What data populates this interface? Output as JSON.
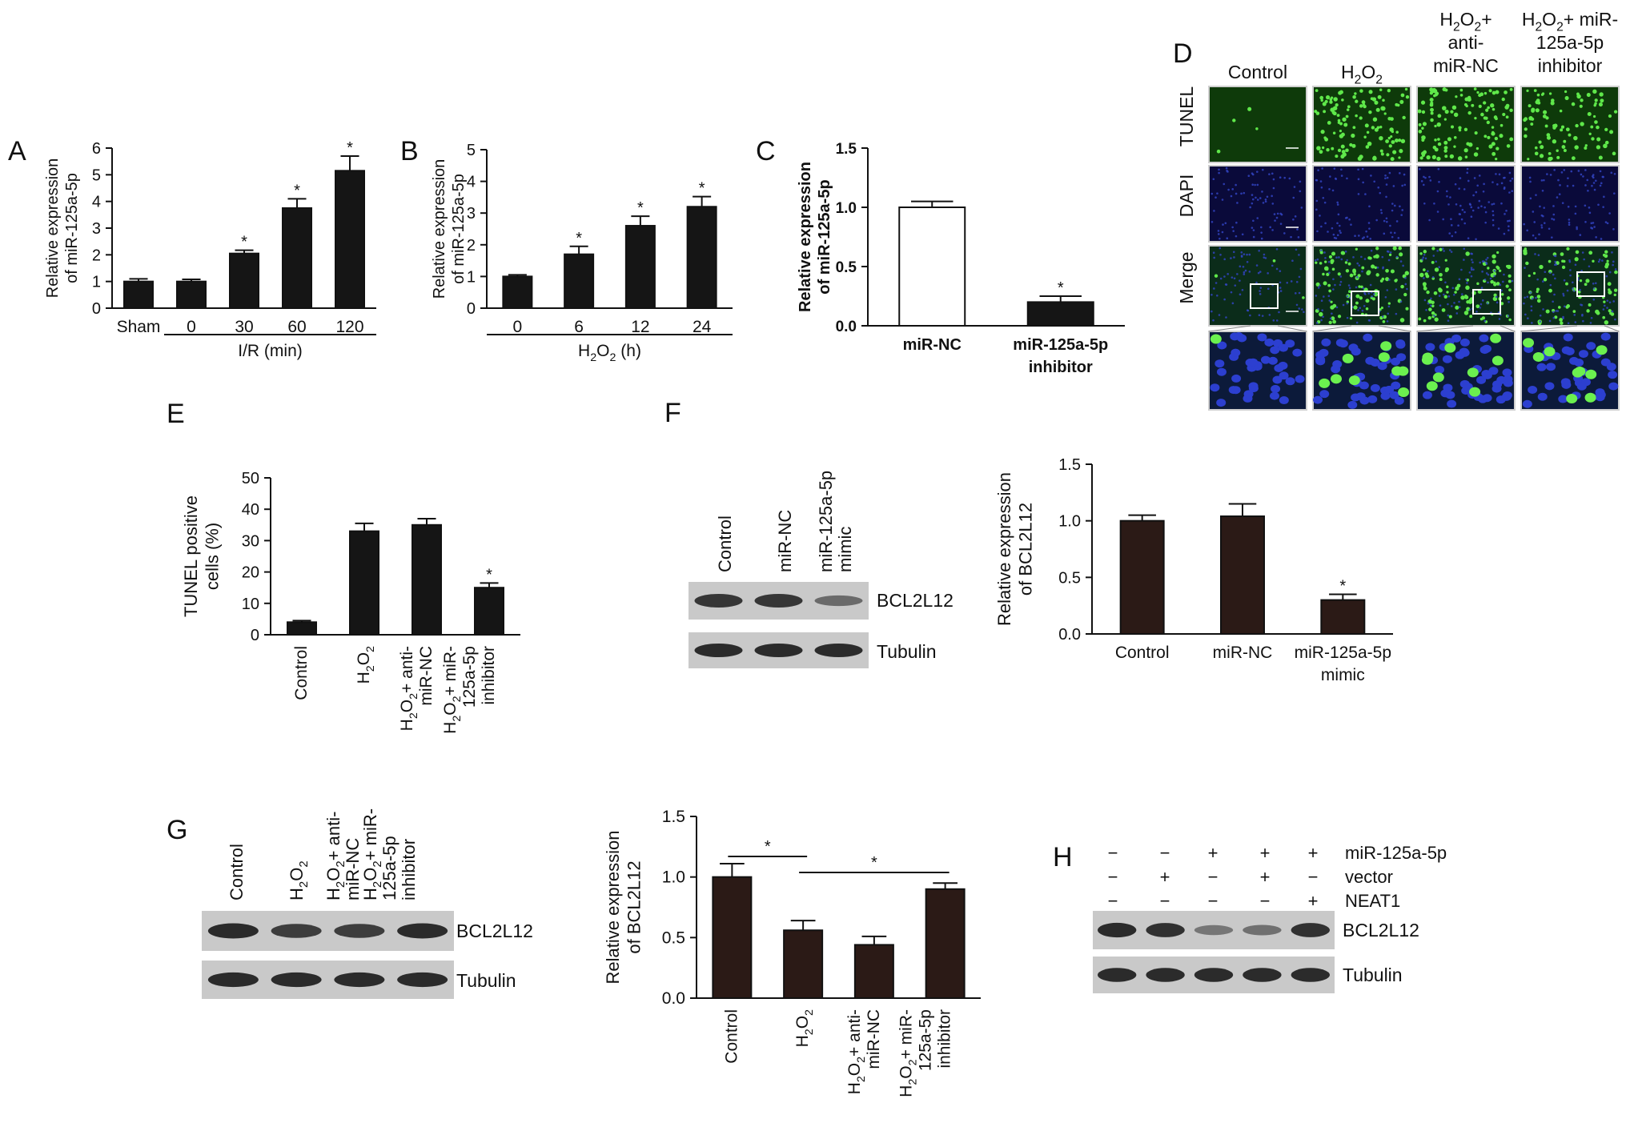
{
  "panel_letters": [
    "A",
    "B",
    "C",
    "D",
    "E",
    "F",
    "G",
    "H"
  ],
  "panel_d": {
    "columns": [
      "Control",
      "H2O2",
      "H2O2+ anti- miR-NC",
      "H2O2+ miR- 125a-5p inhibitor"
    ],
    "rows": [
      "TUNEL",
      "DAPI",
      "Merge"
    ],
    "scale_bar": "50 µm"
  },
  "blots": {
    "F": {
      "lanes": [
        "Control",
        "miR-NC",
        "miR-125a-5p mimic"
      ],
      "bands": [
        "BCL2L12",
        "Tubulin"
      ]
    },
    "G": {
      "lanes": [
        "Control",
        "H2O2",
        "H2O2+ anti- miR-NC",
        "H2O2+ miR- 125a-5p inhibitor"
      ],
      "bands": [
        "BCL2L12",
        "Tubulin"
      ]
    },
    "H": {
      "conditions": [
        {
          "name": "miR-125a-5p",
          "signs": [
            "−",
            "−",
            "+",
            "+",
            "+"
          ]
        },
        {
          "name": "vector",
          "signs": [
            "−",
            "+",
            "−",
            "+",
            "−"
          ]
        },
        {
          "name": "NEAT1",
          "signs": [
            "−",
            "−",
            "−",
            "−",
            "+"
          ]
        }
      ],
      "bands": [
        "BCL2L12",
        "Tubulin"
      ]
    }
  },
  "chart_data": [
    {
      "panel": "A",
      "type": "bar",
      "categories": [
        "Sham",
        "0",
        "30",
        "60",
        "120"
      ],
      "values": [
        1.0,
        1.0,
        2.05,
        3.75,
        5.15
      ],
      "errors": [
        0.1,
        0.08,
        0.12,
        0.35,
        0.55
      ],
      "significance": [
        "",
        "",
        "*",
        "*",
        "*"
      ],
      "xlabel": "I/R (min)",
      "ylabel": "Relative expression of miR-125a-5p",
      "ylim": [
        0,
        6
      ],
      "yticks": [
        0,
        1,
        2,
        3,
        4,
        5,
        6
      ],
      "bar_color": "#151515",
      "grid": false
    },
    {
      "panel": "B",
      "type": "bar",
      "categories": [
        "0",
        "6",
        "12",
        "24"
      ],
      "values": [
        1.0,
        1.7,
        2.6,
        3.2
      ],
      "errors": [
        0.05,
        0.25,
        0.3,
        0.32
      ],
      "significance": [
        "",
        "*",
        "*",
        "*"
      ],
      "xlabel": "H2O2 (h)",
      "ylabel": "Relative expression of miR-125a-5p",
      "ylim": [
        0,
        5
      ],
      "yticks": [
        0,
        1,
        2,
        3,
        4,
        5
      ],
      "bar_color": "#151515",
      "grid": false
    },
    {
      "panel": "C",
      "type": "bar",
      "categories": [
        "miR-NC",
        "miR-125a-5p inhibitor"
      ],
      "values": [
        1.0,
        0.2
      ],
      "errors": [
        0.05,
        0.05
      ],
      "significance": [
        "",
        "*"
      ],
      "xlabel": "",
      "ylabel": "Relative expression of miR-125a-5p",
      "ylim": [
        0,
        1.5
      ],
      "yticks": [
        "0.0",
        "0.5",
        "1.0",
        "1.5"
      ],
      "bar_colors": [
        "#ffffff",
        "#151515"
      ],
      "grid": false
    },
    {
      "panel": "E",
      "type": "bar",
      "categories": [
        "Control",
        "H2O2",
        "H2O2+ anti- miR-NC",
        "H2O2+ miR- 125a-5p inhibitor"
      ],
      "values": [
        4,
        33,
        35,
        15
      ],
      "errors": [
        0.5,
        2.5,
        2,
        1.5
      ],
      "significance": [
        "",
        "",
        "",
        "*"
      ],
      "xlabel": "",
      "ylabel": "TUNEL positive cells (%)",
      "ylim": [
        0,
        50
      ],
      "yticks": [
        0,
        10,
        20,
        30,
        40,
        50
      ],
      "bar_color": "#151515",
      "grid": false
    },
    {
      "panel": "F",
      "type": "bar",
      "categories": [
        "Control",
        "miR-NC",
        "miR-125a-5p mimic"
      ],
      "values": [
        1.0,
        1.04,
        0.3
      ],
      "errors": [
        0.05,
        0.11,
        0.05
      ],
      "significance": [
        "",
        "",
        "*"
      ],
      "xlabel": "",
      "ylabel": "Relative expression of BCL2L12",
      "ylim": [
        0,
        1.5
      ],
      "yticks": [
        "0.0",
        "0.5",
        "1.0",
        "1.5"
      ],
      "bar_color": "#2b1a16",
      "grid": false
    },
    {
      "panel": "G",
      "type": "bar",
      "categories": [
        "Control",
        "H2O2",
        "H2O2+ anti- miR-NC",
        "H2O2+ miR- 125a-5p inhibitor"
      ],
      "values": [
        1.0,
        0.56,
        0.44,
        0.9
      ],
      "errors": [
        0.11,
        0.08,
        0.07,
        0.05
      ],
      "significance_brackets": [
        {
          "from": 0,
          "to": 1,
          "label": "*"
        },
        {
          "from": 1,
          "to": 3,
          "label": "*"
        }
      ],
      "xlabel": "",
      "ylabel": "Relative expression of BCL2L12",
      "ylim": [
        0,
        1.5
      ],
      "yticks": [
        "0.0",
        "0.5",
        "1.0",
        "1.5"
      ],
      "bar_color": "#2b1a16",
      "grid": false
    }
  ]
}
